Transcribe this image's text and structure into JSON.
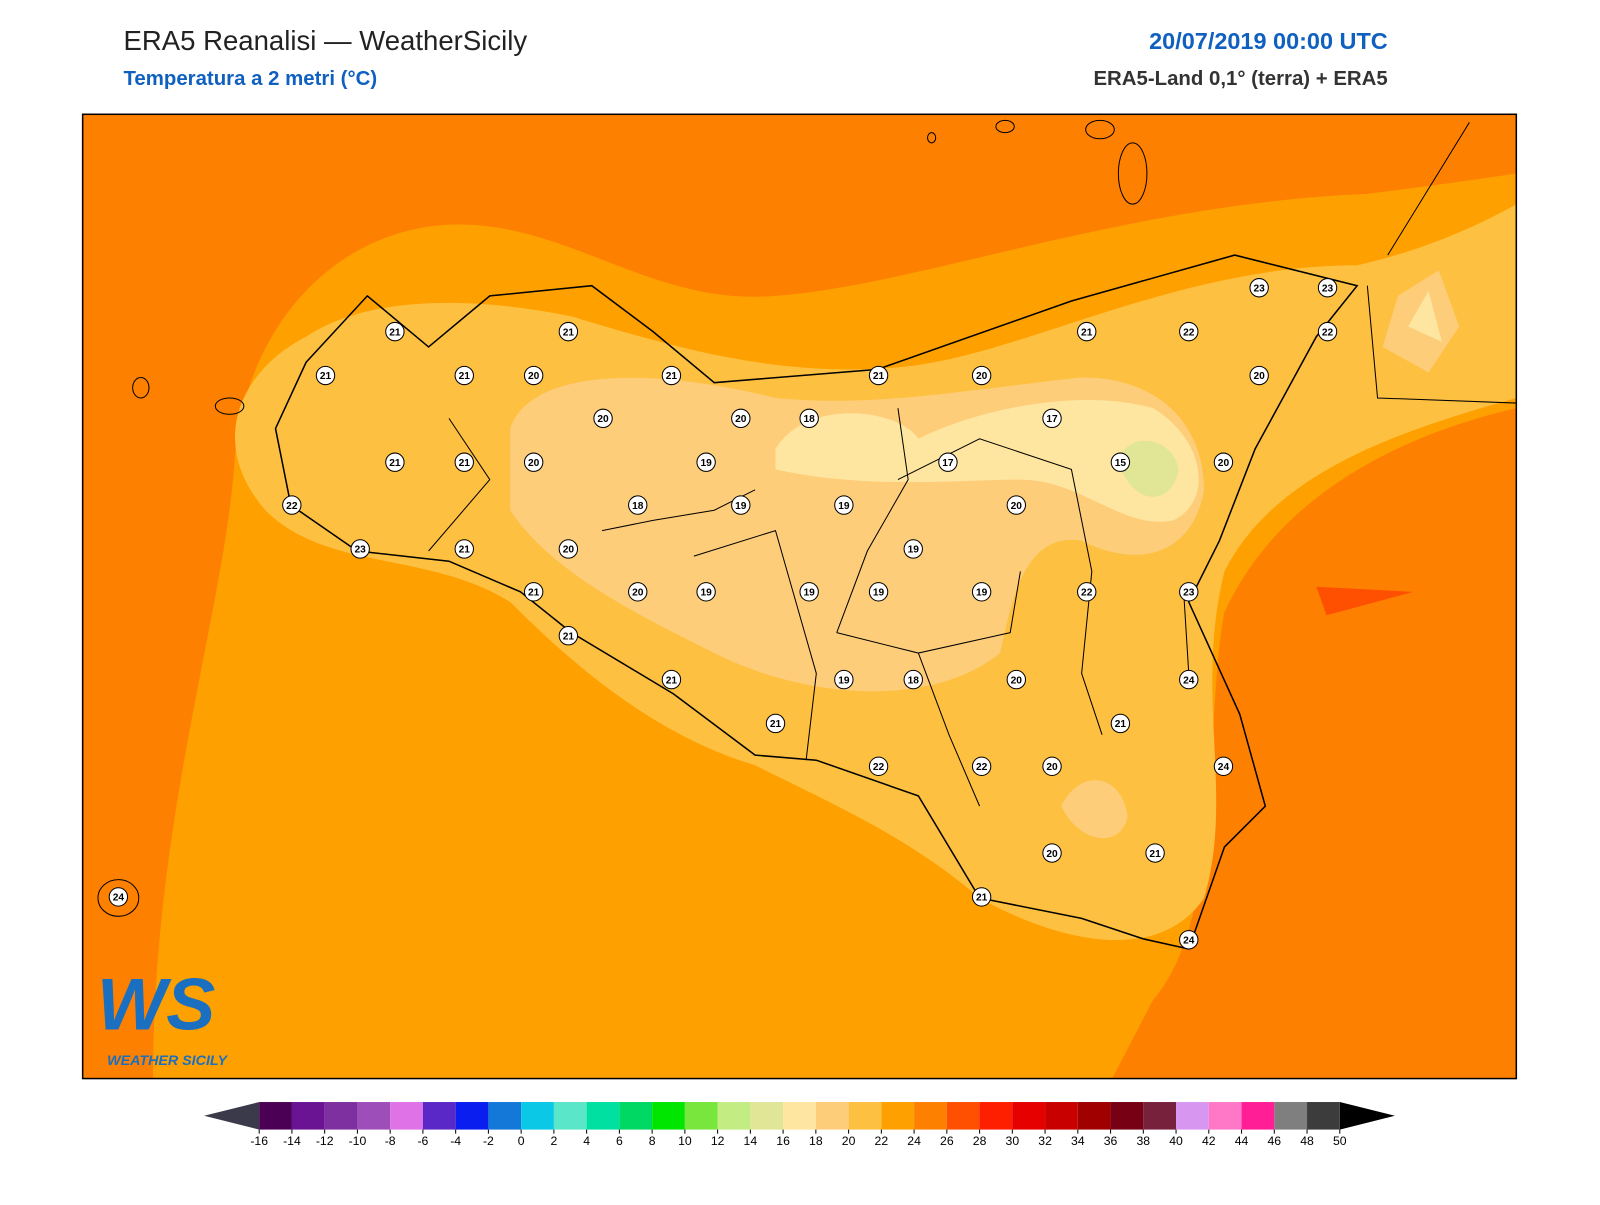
{
  "header": {
    "title": "ERA5 Reanalisi — WeatherSicily",
    "subtitle": "Temperatura a 2 metri (°C)",
    "datetime": "20/07/2019 00:00 UTC",
    "source": "ERA5-Land 0,1° (terra) + ERA5"
  },
  "logo": {
    "mark": "WS",
    "text": "WEATHER SICILY"
  },
  "map": {
    "stations": [
      21,
      21,
      21,
      21,
      20,
      21,
      21,
      20,
      21,
      22,
      23,
      23,
      22,
      20,
      20,
      20,
      18,
      17,
      21,
      21,
      20,
      19,
      17,
      15,
      20,
      22,
      18,
      19,
      19,
      20,
      23,
      21,
      20,
      19,
      21,
      20,
      19,
      19,
      19,
      19,
      22,
      23,
      21,
      21,
      19,
      18,
      20,
      24,
      21,
      21,
      22,
      22,
      20,
      24,
      20,
      21,
      21,
      24,
      24
    ]
  },
  "colorbar": {
    "ticks": [
      -16,
      -14,
      -12,
      -10,
      -8,
      -6,
      -4,
      -2,
      0,
      2,
      4,
      6,
      8,
      10,
      12,
      14,
      16,
      18,
      20,
      22,
      24,
      26,
      28,
      30,
      32,
      34,
      36,
      38,
      40,
      42,
      44,
      46,
      48,
      50
    ],
    "colors": [
      "#4b0055",
      "#6a1494",
      "#7f30a0",
      "#9e4eb8",
      "#df72e6",
      "#5b28c8",
      "#0a1ef0",
      "#1478d8",
      "#0ac8e6",
      "#5ae6c8",
      "#00e0a0",
      "#00d864",
      "#00e600",
      "#78e63c",
      "#c3ec82",
      "#e0e696",
      "#fee6a0",
      "#fecd7a",
      "#fec040",
      "#fea000",
      "#fe8000",
      "#fe5000",
      "#fe1e00",
      "#e60000",
      "#c80000",
      "#a00000",
      "#780014",
      "#78213c",
      "#d796f0",
      "#ff78c8",
      "#ff1e96",
      "#7f7f7f",
      "#3c3c3c"
    ],
    "under_color": "#3a3a4a",
    "over_color": "#000000"
  }
}
